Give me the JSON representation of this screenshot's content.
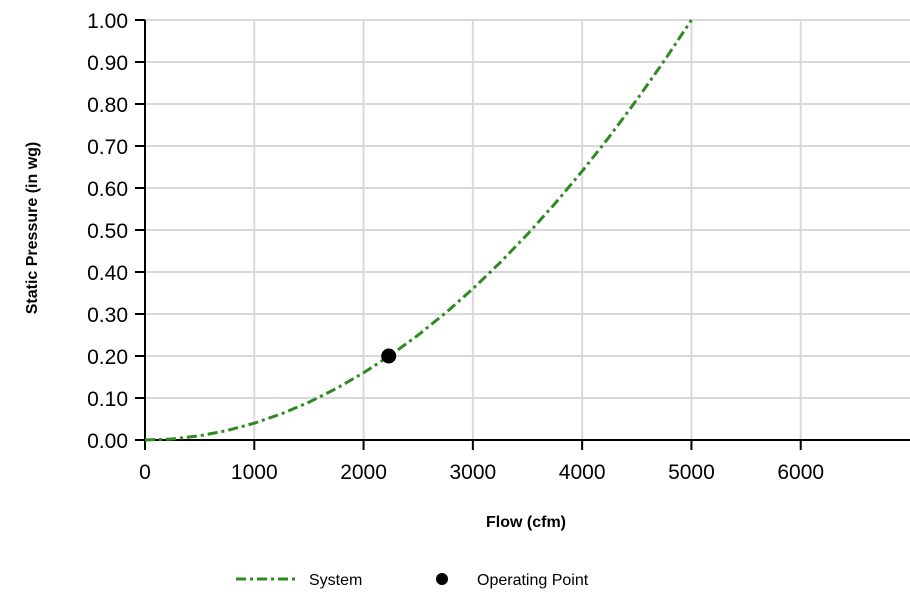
{
  "chart_data": {
    "type": "line",
    "title": "",
    "xlabel": "Flow (cfm)",
    "ylabel": "Static Pressure (in wg)",
    "xlim": [
      0,
      7000
    ],
    "ylim": [
      0,
      1.0
    ],
    "x_ticks": [
      0,
      1000,
      2000,
      3000,
      4000,
      5000,
      6000
    ],
    "x_tick_labels": [
      "0",
      "1000",
      "2000",
      "3000",
      "4000",
      "5000",
      "6000"
    ],
    "y_ticks": [
      0,
      0.1,
      0.2,
      0.3,
      0.4,
      0.5,
      0.6,
      0.7,
      0.8,
      0.9,
      1.0
    ],
    "y_tick_labels": [
      "0.00",
      "0.10",
      "0.20",
      "0.30",
      "0.40",
      "0.50",
      "0.60",
      "0.70",
      "0.80",
      "0.90",
      "1.00"
    ],
    "grid": true,
    "legend_position": "bottom-center",
    "series": [
      {
        "name": "System",
        "style": "dash-dot",
        "color": "#2e8b22",
        "x": [
          0,
          250,
          500,
          750,
          1000,
          1250,
          1500,
          1750,
          2000,
          2250,
          2500,
          2750,
          3000,
          3250,
          3500,
          3750,
          4000,
          4250,
          4500,
          4750,
          5000
        ],
        "y": [
          0.0,
          0.0025,
          0.01,
          0.0225,
          0.04,
          0.0625,
          0.09,
          0.1225,
          0.16,
          0.2025,
          0.25,
          0.3025,
          0.36,
          0.4225,
          0.49,
          0.5625,
          0.64,
          0.7225,
          0.81,
          0.9025,
          1.0
        ]
      }
    ],
    "points": [
      {
        "name": "Operating Point",
        "x": 2230,
        "y": 0.2,
        "color": "#000000"
      }
    ]
  },
  "legend": {
    "system_label": "System",
    "operating_point_label": "Operating Point"
  }
}
